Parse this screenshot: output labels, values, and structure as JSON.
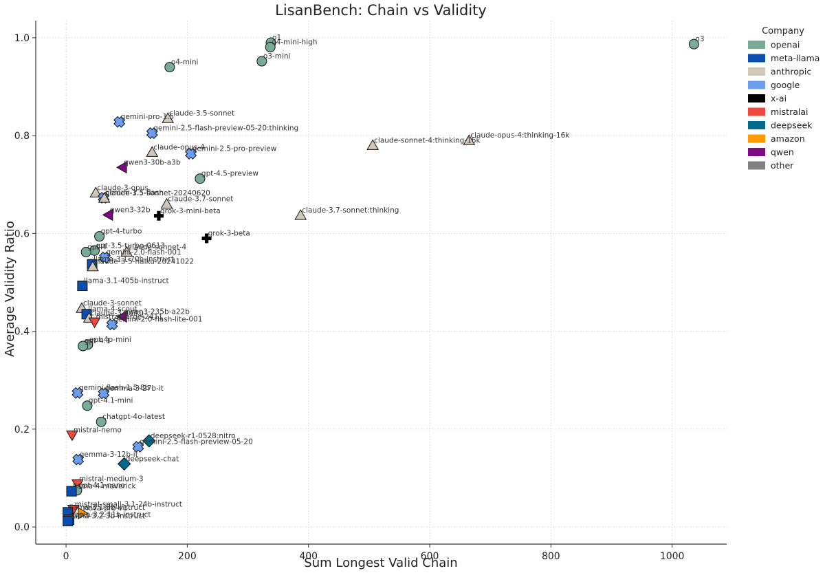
{
  "chart_data": {
    "type": "scatter",
    "title": "LisanBench: Chain vs Validity",
    "xlabel": "Sum Longest Valid Chain",
    "ylabel": "Average Validity Ratio",
    "xlim": [
      -50,
      1090
    ],
    "ylim": [
      -0.035,
      1.035
    ],
    "xticks": [
      0,
      200,
      400,
      600,
      800,
      1000
    ],
    "yticks": [
      0.0,
      0.2,
      0.4,
      0.6,
      0.8,
      1.0
    ],
    "grid": true,
    "legend": {
      "title": "Company",
      "placement": "top-right-outside",
      "entries": [
        {
          "name": "openai",
          "color": "#7aaa98"
        },
        {
          "name": "meta-llama",
          "color": "#0a4fb0"
        },
        {
          "name": "anthropic",
          "color": "#d1c7b7"
        },
        {
          "name": "google",
          "color": "#6c9ef0"
        },
        {
          "name": "x-ai",
          "color": "#000000"
        },
        {
          "name": "mistralai",
          "color": "#f0483e"
        },
        {
          "name": "deepseek",
          "color": "#006b8c"
        },
        {
          "name": "amazon",
          "color": "#ff9a00"
        },
        {
          "name": "qwen",
          "color": "#7d0a82"
        },
        {
          "name": "other",
          "color": "#808080"
        }
      ]
    },
    "markers": {
      "openai": "circle",
      "meta-llama": "square",
      "anthropic": "triangle-up",
      "google": "x",
      "x-ai": "plus",
      "mistralai": "triangle-down",
      "deepseek": "diamond",
      "amazon": "triangle-right",
      "qwen": "triangle-left",
      "other": "circle"
    },
    "points": [
      {
        "label": "o3",
        "company": "openai",
        "x": 1036,
        "y": 0.987
      },
      {
        "label": "o1",
        "company": "openai",
        "x": 338,
        "y": 0.99
      },
      {
        "label": "o4-mini-high",
        "company": "openai",
        "x": 337,
        "y": 0.981
      },
      {
        "label": "o3-mini",
        "company": "openai",
        "x": 323,
        "y": 0.952
      },
      {
        "label": "o4-mini",
        "company": "openai",
        "x": 171,
        "y": 0.94
      },
      {
        "label": "claude-3.5-sonnet",
        "company": "anthropic",
        "x": 168,
        "y": 0.835
      },
      {
        "label": "gemini-pro-1.5",
        "company": "google",
        "x": 88,
        "y": 0.828
      },
      {
        "label": "gemini-2.5-flash-preview-05-20:thinking",
        "company": "google",
        "x": 142,
        "y": 0.805
      },
      {
        "label": "claude-sonnet-4:thinking-16k",
        "company": "anthropic",
        "x": 506,
        "y": 0.78
      },
      {
        "label": "claude-opus-4:thinking-16k",
        "company": "anthropic",
        "x": 665,
        "y": 0.79
      },
      {
        "label": "claude-opus-4",
        "company": "anthropic",
        "x": 142,
        "y": 0.766
      },
      {
        "label": "gemini-2.5-pro-preview",
        "company": "google",
        "x": 206,
        "y": 0.763
      },
      {
        "label": "qwen3-30b-a3b",
        "company": "qwen",
        "x": 93,
        "y": 0.735
      },
      {
        "label": "gpt-4.5-preview",
        "company": "openai",
        "x": 221,
        "y": 0.712
      },
      {
        "label": "claude-3-opus",
        "company": "anthropic",
        "x": 49,
        "y": 0.683
      },
      {
        "label": "gemini-1.5-flash",
        "company": "google",
        "x": 62,
        "y": 0.673
      },
      {
        "label": "claude-3.5-sonnet-20240620",
        "company": "anthropic",
        "x": 63,
        "y": 0.672
      },
      {
        "label": "claude-3.7-sonnet",
        "company": "anthropic",
        "x": 166,
        "y": 0.66
      },
      {
        "label": "qwen3-32b",
        "company": "qwen",
        "x": 70,
        "y": 0.638
      },
      {
        "label": "grok-3-mini-beta",
        "company": "x-ai",
        "x": 153,
        "y": 0.636
      },
      {
        "label": "claude-3.7-sonnet:thinking",
        "company": "anthropic",
        "x": 387,
        "y": 0.637
      },
      {
        "label": "gpt-4-turbo",
        "company": "openai",
        "x": 55,
        "y": 0.594
      },
      {
        "label": "grok-3-beta",
        "company": "x-ai",
        "x": 232,
        "y": 0.59
      },
      {
        "label": "gpt-3.5-turbo-0613",
        "company": "openai",
        "x": 47,
        "y": 0.565
      },
      {
        "label": "gpt-4",
        "company": "openai",
        "x": 33,
        "y": 0.562
      },
      {
        "label": "claude-sonnet-4",
        "company": "anthropic",
        "x": 100,
        "y": 0.562
      },
      {
        "label": "gemini-2.0-flash-001",
        "company": "google",
        "x": 64,
        "y": 0.551
      },
      {
        "label": "llama-3.1-70b-instruct",
        "company": "meta-llama",
        "x": 43,
        "y": 0.537
      },
      {
        "label": "claude-3-5-haiku-20241022",
        "company": "anthropic",
        "x": 44,
        "y": 0.532
      },
      {
        "label": "llama-3.1-405b-instruct",
        "company": "meta-llama",
        "x": 27,
        "y": 0.493
      },
      {
        "label": "claude-3-sonnet",
        "company": "anthropic",
        "x": 26,
        "y": 0.447
      },
      {
        "label": "llama-4-scout",
        "company": "meta-llama",
        "x": 34,
        "y": 0.435
      },
      {
        "label": "claude-3-haiku",
        "company": "anthropic",
        "x": 38,
        "y": 0.427
      },
      {
        "label": "qwen3-235b-a22b",
        "company": "qwen",
        "x": 93,
        "y": 0.43
      },
      {
        "label": "mistral-large-2411",
        "company": "mistralai",
        "x": 47,
        "y": 0.419
      },
      {
        "label": "gemini-2.0-flash-lite-001",
        "company": "google",
        "x": 76,
        "y": 0.414
      },
      {
        "label": "gpt-4o-mini",
        "company": "openai",
        "x": 36,
        "y": 0.373
      },
      {
        "label": "gpt-4.1",
        "company": "openai",
        "x": 28,
        "y": 0.37
      },
      {
        "label": "gemini-flash-1.5-8b",
        "company": "google",
        "x": 19,
        "y": 0.274
      },
      {
        "label": "gemma-3-27b-it",
        "company": "google",
        "x": 62,
        "y": 0.273
      },
      {
        "label": "gpt-4.1-mini",
        "company": "openai",
        "x": 35,
        "y": 0.248
      },
      {
        "label": "chatgpt-4o-latest",
        "company": "openai",
        "x": 58,
        "y": 0.215
      },
      {
        "label": "mistral-nemo",
        "company": "mistralai",
        "x": 10,
        "y": 0.188
      },
      {
        "label": "deepseek-r1-0528:nitro",
        "company": "deepseek",
        "x": 137,
        "y": 0.176
      },
      {
        "label": "gemini-2.5-flash-preview-05-20",
        "company": "google",
        "x": 119,
        "y": 0.164
      },
      {
        "label": "gemma-3-12b-it",
        "company": "google",
        "x": 20,
        "y": 0.138
      },
      {
        "label": "deepseek-chat",
        "company": "deepseek",
        "x": 96,
        "y": 0.129
      },
      {
        "label": "mistral-medium-3",
        "company": "mistralai",
        "x": 19,
        "y": 0.088
      },
      {
        "label": "gpt-4.1-nano",
        "company": "openai",
        "x": 18,
        "y": 0.075
      },
      {
        "label": "llama-4-maverick",
        "company": "meta-llama",
        "x": 9,
        "y": 0.073
      },
      {
        "label": "mistral-small-3.1-24b-instruct",
        "company": "mistralai",
        "x": 12,
        "y": 0.036
      },
      {
        "label": "llama-3.1-8b-instruct",
        "company": "meta-llama",
        "x": 3,
        "y": 0.03
      },
      {
        "label": "nova-pro-v1",
        "company": "amazon",
        "x": 27,
        "y": 0.028
      },
      {
        "label": "llama-3.2-11b-instruct",
        "company": "meta-llama",
        "x": 5,
        "y": 0.015
      },
      {
        "label": "llama-3.2-3b-instruct",
        "company": "meta-llama",
        "x": 3,
        "y": 0.012
      }
    ]
  }
}
